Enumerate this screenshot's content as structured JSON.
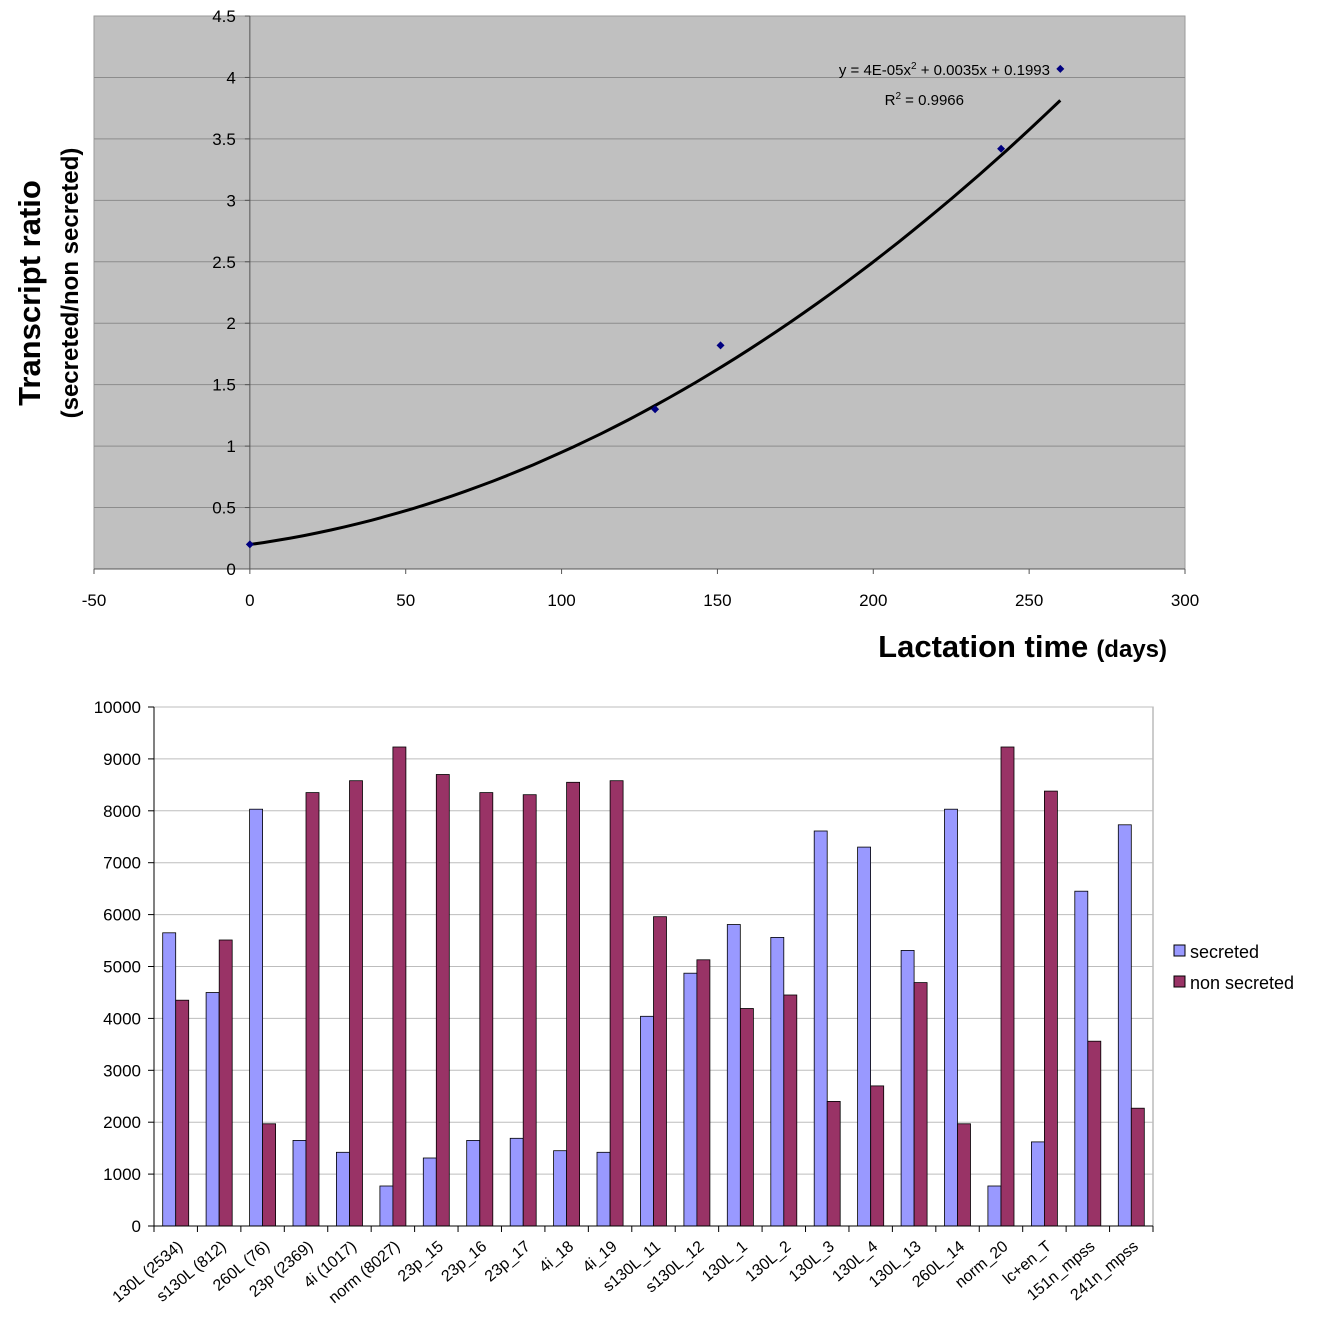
{
  "chart_data": [
    {
      "type": "scatter",
      "xlabel": "Lactation time",
      "xlabel_unit": "(days)",
      "ylabel": "Transcript ratio",
      "ylabel_sub": "(secreted/non secreted)",
      "xlim": [
        -50,
        300
      ],
      "ylim": [
        0,
        4.5
      ],
      "x_ticks": [
        "-50",
        "0",
        "50",
        "100",
        "150",
        "200",
        "250",
        "300"
      ],
      "y_ticks": [
        "0",
        "0.5",
        "1",
        "1.5",
        "2",
        "2.5",
        "3",
        "3.5",
        "4",
        "4.5"
      ],
      "grid": true,
      "plot_background": "#c0c0c0",
      "point_color": "#000080",
      "points": [
        {
          "x": 0,
          "y": 0.2
        },
        {
          "x": 130,
          "y": 1.3
        },
        {
          "x": 151,
          "y": 1.82
        },
        {
          "x": 241,
          "y": 3.42
        },
        {
          "x": 260,
          "y": 4.07
        }
      ],
      "trendline": {
        "type": "polynomial",
        "coefficients": [
          4e-05,
          0.0035,
          0.1993
        ],
        "x_range": [
          0,
          260
        ],
        "equation_label": "y = 4E-05x",
        "equation_sup": "2",
        "equation_rest": " + 0.0035x + 0.1993",
        "r2_label": "R",
        "r2_sup": "2",
        "r2_rest": " = 0.9966"
      }
    },
    {
      "type": "bar",
      "categories": [
        "130L (2534)",
        "s130L (812)",
        "260L (76)",
        "23p (2369)",
        "4i (1017)",
        "norm (8027)",
        "23p_15",
        "23p_16",
        "23p_17",
        "4i_18",
        "4i_19",
        "s130L_11",
        "s130L_12",
        "130L_1",
        "130L_2",
        "130L_3",
        "130L_4",
        "130L_13",
        "260L_14",
        "norm_20",
        "lc+en_T",
        "151n_mpss",
        "241n_mpss"
      ],
      "ylim": [
        0,
        10000
      ],
      "y_ticks": [
        "0",
        "1000",
        "2000",
        "3000",
        "4000",
        "5000",
        "6000",
        "7000",
        "8000",
        "9000",
        "10000"
      ],
      "grid": true,
      "legend_position": "right",
      "series": [
        {
          "name": "secreted",
          "color": "#9999ff",
          "values": [
            5650,
            4500,
            8030,
            1650,
            1420,
            770,
            1310,
            1650,
            1690,
            1450,
            1420,
            4040,
            4870,
            5810,
            5560,
            7610,
            7300,
            5310,
            8030,
            770,
            1620,
            6450,
            7730
          ]
        },
        {
          "name": "non secreted",
          "color": "#993366",
          "values": [
            4350,
            5510,
            1970,
            8350,
            8580,
            9230,
            8700,
            8350,
            8310,
            8550,
            8580,
            5960,
            5130,
            4190,
            4450,
            2400,
            2700,
            4690,
            1970,
            9230,
            8380,
            3560,
            2270
          ]
        }
      ]
    }
  ]
}
